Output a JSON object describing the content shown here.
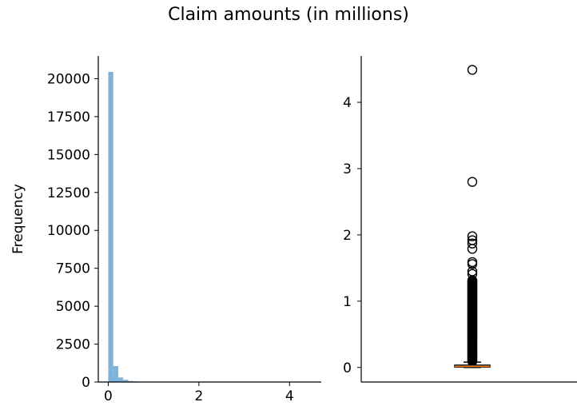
{
  "figure": {
    "title": "Claim amounts (in millions)"
  },
  "chart_data": [
    {
      "type": "bar",
      "subtype": "histogram",
      "title": "",
      "xlabel": "",
      "ylabel": "Frequency",
      "xlim": [
        -0.22,
        4.7
      ],
      "ylim": [
        0,
        21500
      ],
      "x_ticks": [
        0,
        2,
        4
      ],
      "y_ticks": [
        0,
        2500,
        5000,
        7500,
        10000,
        12500,
        15000,
        17500,
        20000
      ],
      "bin_width": 0.11,
      "bins": [
        {
          "x0": 0.0,
          "x1": 0.11,
          "count": 20450
        },
        {
          "x0": 0.11,
          "x1": 0.22,
          "count": 1050
        },
        {
          "x0": 0.22,
          "x1": 0.33,
          "count": 300
        },
        {
          "x0": 0.33,
          "x1": 0.44,
          "count": 150
        },
        {
          "x0": 0.44,
          "x1": 0.55,
          "count": 70
        },
        {
          "x0": 0.55,
          "x1": 0.66,
          "count": 40
        },
        {
          "x0": 0.66,
          "x1": 0.77,
          "count": 25
        },
        {
          "x0": 0.77,
          "x1": 0.88,
          "count": 15
        },
        {
          "x0": 0.88,
          "x1": 0.99,
          "count": 10
        }
      ],
      "bar_color": "#7fb2d8",
      "grid": false,
      "legend": "none"
    },
    {
      "type": "box",
      "title": "",
      "xlabel": "",
      "ylabel": "",
      "ylim": [
        -0.22,
        4.7
      ],
      "y_ticks": [
        0,
        1,
        2,
        3,
        4
      ],
      "x_ticks": [],
      "box": {
        "q1": 0.005,
        "median": 0.015,
        "q3": 0.035,
        "whisker_low": 0.0,
        "whisker_high": 0.08
      },
      "outliers_sparse": [
        4.49,
        2.8,
        1.98,
        1.92,
        1.87,
        1.79,
        1.59,
        1.56,
        1.45,
        1.41
      ],
      "outliers_dense_range": [
        0.09,
        1.32
      ],
      "outlier_marker": "hollow circle",
      "box_color": "#000000",
      "median_color": "#ff7f0e",
      "grid": false,
      "legend": "none"
    }
  ]
}
